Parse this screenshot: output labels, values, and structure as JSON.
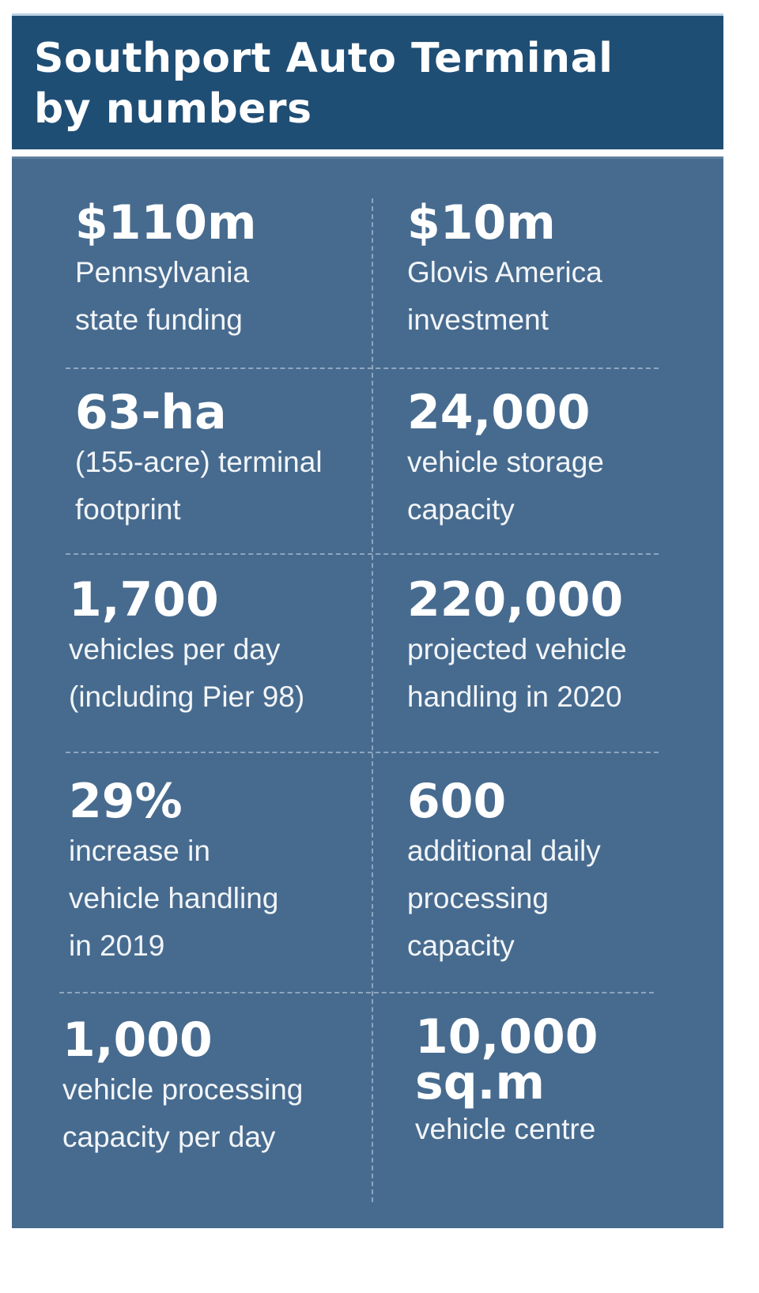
{
  "title_line1": "Southport Auto Terminal",
  "title_line2": "by numbers",
  "stats": [
    {
      "value": "$110m",
      "label": [
        "Pennsylvania",
        "state funding"
      ]
    },
    {
      "value": "$10m",
      "label": [
        "Glovis America",
        "investment"
      ]
    },
    {
      "value": "63-ha",
      "label": [
        "(155-acre) terminal",
        "footprint"
      ]
    },
    {
      "value": "24,000",
      "label": [
        "vehicle storage",
        "capacity"
      ]
    },
    {
      "value": "1,700",
      "label": [
        "vehicles per day",
        "(including Pier 98)"
      ]
    },
    {
      "value": "220,000",
      "label": [
        "projected vehicle",
        "handling in 2020"
      ]
    },
    {
      "value": "29%",
      "label": [
        "increase in",
        "vehicle handling",
        "in 2019"
      ]
    },
    {
      "value": "600",
      "label": [
        "additional daily",
        "processing",
        "capacity"
      ]
    },
    {
      "value": "1,000",
      "label": [
        "vehicle processing",
        "capacity per day"
      ]
    },
    {
      "value": "10,000 sq.m",
      "value_lines": [
        "10,000",
        "sq.m"
      ],
      "label": [
        "vehicle centre"
      ]
    }
  ],
  "colors": {
    "header": "#1f4e75",
    "panel": "#476b8f",
    "text": "#ffffff"
  }
}
